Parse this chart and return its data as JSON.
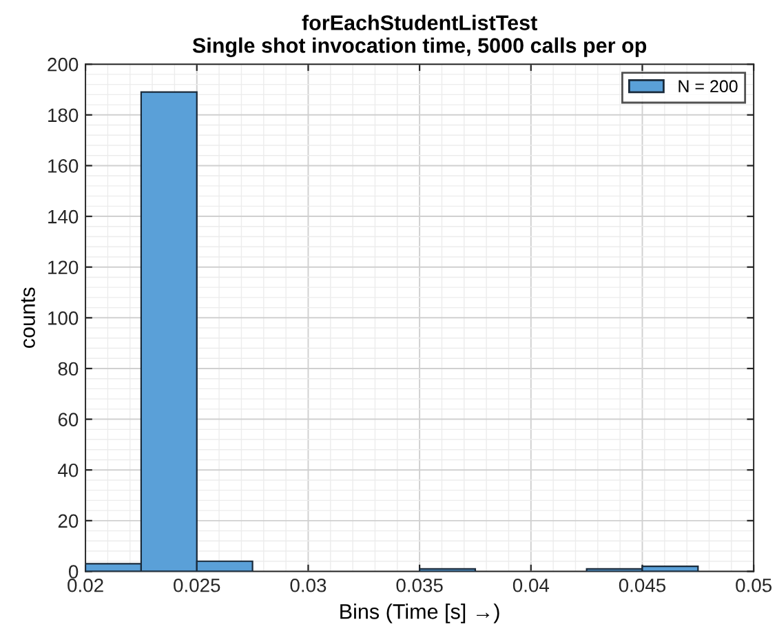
{
  "chart_data": {
    "type": "histogram",
    "title": "forEachStudentListTest\nSingle shot invocation time, 5000 calls per op",
    "xlabel": "Bins (Time [s] →)",
    "ylabel": "counts",
    "bins": [
      0.02,
      0.0225,
      0.025,
      0.0275,
      0.03,
      0.0325,
      0.035,
      0.0375,
      0.04,
      0.0425,
      0.045,
      0.0475
    ],
    "series": [
      {
        "name": "N = 200",
        "color": "#5aa0d8",
        "values": [
          3,
          189,
          4,
          0,
          0,
          0,
          1,
          0,
          0,
          1,
          2
        ]
      }
    ],
    "xlim": [
      0.02,
      0.05
    ],
    "xticks": [
      0.02,
      0.025,
      0.03,
      0.035,
      0.04,
      0.045,
      0.05
    ],
    "ylim": [
      0,
      200
    ],
    "yticks": [
      0,
      20,
      40,
      60,
      80,
      100,
      120,
      140,
      160,
      180,
      200
    ],
    "grid": true,
    "legend": "top right"
  }
}
